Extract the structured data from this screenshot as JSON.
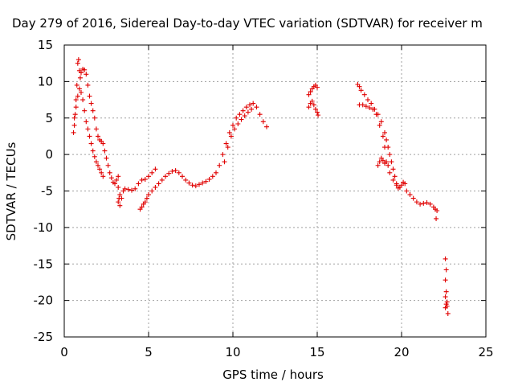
{
  "chart_data": {
    "type": "scatter",
    "title": "Day 279 of 2016, Sidereal Day-to-day VTEC variation (SDTVAR) for receiver m",
    "xlabel": "GPS time / hours",
    "ylabel": "SDTVAR / TECUs",
    "xlim": [
      0,
      25
    ],
    "ylim": [
      -25,
      15
    ],
    "xticks": [
      "0",
      "5",
      "10",
      "15",
      "20",
      "25"
    ],
    "yticks": [
      "15",
      "10",
      "5",
      "0",
      "-5",
      "-10",
      "-15",
      "-20",
      "-25"
    ],
    "grid": true,
    "marker": "plus",
    "color": "#e00000",
    "series": [
      {
        "points": [
          [
            0.55,
            3.0
          ],
          [
            0.6,
            4.0
          ],
          [
            0.65,
            5.5
          ],
          [
            0.7,
            7.5
          ],
          [
            0.75,
            9.5
          ],
          [
            0.8,
            12.5
          ],
          [
            0.85,
            13.0
          ],
          [
            0.9,
            11.5
          ],
          [
            0.95,
            10.5
          ],
          [
            1.0,
            11.2
          ],
          [
            1.1,
            11.7
          ],
          [
            1.2,
            11.6
          ],
          [
            1.3,
            11.0
          ],
          [
            1.4,
            9.5
          ],
          [
            1.5,
            8.0
          ],
          [
            1.6,
            7.0
          ],
          [
            1.7,
            6.0
          ],
          [
            1.8,
            5.0
          ],
          [
            1.9,
            3.5
          ],
          [
            2.0,
            2.5
          ],
          [
            2.1,
            2.0
          ],
          [
            2.2,
            1.8
          ],
          [
            2.3,
            1.5
          ],
          [
            2.4,
            0.5
          ],
          [
            2.5,
            -0.5
          ],
          [
            2.6,
            -1.5
          ],
          [
            2.7,
            -2.5
          ],
          [
            2.8,
            -3.2
          ],
          [
            2.9,
            -3.8
          ],
          [
            3.0,
            -4.0
          ],
          [
            3.1,
            -3.5
          ],
          [
            3.2,
            -3.0
          ],
          [
            0.6,
            5.0
          ],
          [
            0.7,
            6.5
          ],
          [
            0.8,
            8.0
          ],
          [
            0.9,
            9.0
          ],
          [
            1.0,
            8.5
          ],
          [
            1.1,
            7.5
          ],
          [
            1.2,
            6.0
          ],
          [
            1.3,
            4.5
          ],
          [
            1.4,
            3.5
          ],
          [
            1.5,
            2.5
          ],
          [
            1.6,
            1.5
          ],
          [
            1.7,
            0.5
          ],
          [
            1.8,
            -0.3
          ],
          [
            1.9,
            -1.0
          ],
          [
            2.0,
            -1.5
          ],
          [
            2.1,
            -2.0
          ],
          [
            2.2,
            -2.5
          ],
          [
            2.3,
            -3.0
          ],
          [
            3.2,
            -4.5
          ],
          [
            3.3,
            -5.5
          ],
          [
            3.4,
            -6.0
          ],
          [
            3.5,
            -5.0
          ],
          [
            3.6,
            -4.7
          ],
          [
            3.8,
            -4.8
          ],
          [
            4.0,
            -4.9
          ],
          [
            4.2,
            -4.7
          ],
          [
            4.4,
            -4.0
          ],
          [
            4.6,
            -3.5
          ],
          [
            4.8,
            -3.4
          ],
          [
            5.0,
            -3.0
          ],
          [
            5.2,
            -2.5
          ],
          [
            5.4,
            -2.0
          ],
          [
            3.2,
            -6.5
          ],
          [
            3.3,
            -7.0
          ],
          [
            3.25,
            -6.0
          ],
          [
            4.5,
            -7.5
          ],
          [
            4.6,
            -7.2
          ],
          [
            4.7,
            -6.8
          ],
          [
            4.8,
            -6.5
          ],
          [
            4.9,
            -6.0
          ],
          [
            5.0,
            -5.5
          ],
          [
            5.2,
            -5.0
          ],
          [
            5.4,
            -4.5
          ],
          [
            5.6,
            -4.0
          ],
          [
            5.8,
            -3.5
          ],
          [
            6.0,
            -3.0
          ],
          [
            6.2,
            -2.6
          ],
          [
            6.4,
            -2.3
          ],
          [
            6.6,
            -2.2
          ],
          [
            6.8,
            -2.5
          ],
          [
            7.0,
            -3.0
          ],
          [
            7.2,
            -3.5
          ],
          [
            7.4,
            -3.9
          ],
          [
            7.6,
            -4.2
          ],
          [
            7.8,
            -4.3
          ],
          [
            8.0,
            -4.1
          ],
          [
            8.2,
            -3.9
          ],
          [
            8.4,
            -3.7
          ],
          [
            8.6,
            -3.4
          ],
          [
            8.8,
            -3.0
          ],
          [
            9.0,
            -2.5
          ],
          [
            9.2,
            -1.5
          ],
          [
            9.4,
            0.0
          ],
          [
            9.6,
            1.5
          ],
          [
            9.8,
            3.0
          ],
          [
            10.0,
            4.0
          ],
          [
            10.2,
            5.0
          ],
          [
            10.4,
            5.5
          ],
          [
            10.6,
            6.0
          ],
          [
            10.8,
            6.5
          ],
          [
            11.0,
            6.8
          ],
          [
            11.2,
            7.0
          ],
          [
            11.4,
            6.5
          ],
          [
            11.6,
            5.5
          ],
          [
            11.8,
            4.5
          ],
          [
            12.0,
            3.8
          ],
          [
            9.5,
            -1.0
          ],
          [
            9.7,
            1.0
          ],
          [
            9.9,
            2.5
          ],
          [
            10.1,
            3.5
          ],
          [
            10.3,
            4.2
          ],
          [
            10.5,
            4.8
          ],
          [
            10.7,
            5.3
          ],
          [
            10.9,
            5.8
          ],
          [
            11.1,
            6.2
          ],
          [
            14.5,
            8.2
          ],
          [
            14.6,
            8.6
          ],
          [
            14.7,
            9.0
          ],
          [
            14.8,
            9.3
          ],
          [
            14.9,
            9.5
          ],
          [
            15.0,
            9.2
          ],
          [
            14.5,
            6.5
          ],
          [
            14.6,
            7.0
          ],
          [
            14.7,
            7.3
          ],
          [
            14.8,
            6.8
          ],
          [
            14.9,
            6.2
          ],
          [
            15.0,
            5.8
          ],
          [
            15.05,
            5.4
          ],
          [
            17.4,
            9.6
          ],
          [
            17.5,
            9.3
          ],
          [
            17.6,
            8.8
          ],
          [
            17.8,
            8.2
          ],
          [
            18.0,
            7.5
          ],
          [
            18.2,
            7.0
          ],
          [
            18.4,
            6.2
          ],
          [
            18.6,
            5.5
          ],
          [
            18.8,
            4.5
          ],
          [
            19.0,
            3.0
          ],
          [
            19.1,
            2.0
          ],
          [
            19.2,
            1.0
          ],
          [
            19.3,
            0.0
          ],
          [
            19.4,
            -1.0
          ],
          [
            19.5,
            -2.0
          ],
          [
            19.6,
            -3.0
          ],
          [
            19.7,
            -4.0
          ],
          [
            19.8,
            -4.6
          ],
          [
            17.5,
            6.8
          ],
          [
            17.7,
            6.8
          ],
          [
            17.9,
            6.6
          ],
          [
            18.1,
            6.4
          ],
          [
            18.3,
            6.2
          ],
          [
            18.5,
            5.5
          ],
          [
            18.7,
            4.0
          ],
          [
            18.9,
            2.5
          ],
          [
            19.0,
            1.0
          ],
          [
            18.8,
            -0.5
          ],
          [
            18.9,
            -0.8
          ],
          [
            19.0,
            -1.2
          ],
          [
            19.1,
            -1.0
          ],
          [
            19.2,
            -1.5
          ],
          [
            19.3,
            -2.5
          ],
          [
            19.5,
            -3.5
          ],
          [
            19.7,
            -4.2
          ],
          [
            18.6,
            -1.5
          ],
          [
            18.7,
            -1.0
          ],
          [
            19.9,
            -4.5
          ],
          [
            20.0,
            -4.2
          ],
          [
            20.1,
            -3.8
          ],
          [
            20.2,
            -4.0
          ],
          [
            20.3,
            -5.0
          ],
          [
            20.5,
            -5.5
          ],
          [
            20.7,
            -6.0
          ],
          [
            20.9,
            -6.5
          ],
          [
            21.1,
            -6.8
          ],
          [
            21.3,
            -6.7
          ],
          [
            21.5,
            -6.6
          ],
          [
            21.7,
            -6.8
          ],
          [
            21.9,
            -7.2
          ],
          [
            22.0,
            -7.5
          ],
          [
            22.1,
            -7.7
          ],
          [
            22.05,
            -8.8
          ],
          [
            22.6,
            -14.3
          ],
          [
            22.65,
            -15.8
          ],
          [
            22.6,
            -17.2
          ],
          [
            22.65,
            -18.8
          ],
          [
            22.6,
            -19.5
          ],
          [
            22.7,
            -20.2
          ],
          [
            22.65,
            -20.5
          ],
          [
            22.7,
            -20.8
          ],
          [
            22.6,
            -21.0
          ],
          [
            22.75,
            -21.8
          ]
        ]
      }
    ]
  }
}
